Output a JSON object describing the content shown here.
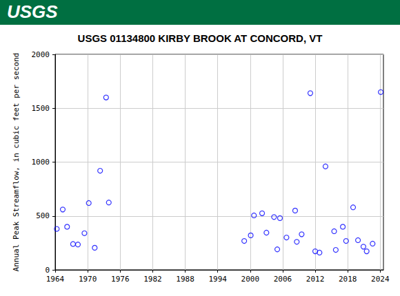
{
  "chart_data": {
    "type": "scatter",
    "title": "USGS 01134800 KIRBY BROOK AT CONCORD, VT",
    "annotations": [
      {
        "text": "USGS"
      }
    ],
    "y_label": "Annual Peak Streamflow, in cubic feet per second",
    "x": [
      1964.3,
      1965.4,
      1966.2,
      1967.3,
      1968.2,
      1969.4,
      1970.2,
      1971.3,
      1972.3,
      1973.4,
      1973.9,
      1998.9,
      2000.1,
      2000.7,
      2002.2,
      2003.0,
      2004.4,
      2005.0,
      2005.5,
      2006.7,
      2008.3,
      2008.6,
      2009.5,
      2011.1,
      2012.0,
      2012.8,
      2013.9,
      2015.5,
      2015.8,
      2017.1,
      2017.7,
      2019.0,
      2019.9,
      2020.9,
      2021.5,
      2022.6,
      2024.1
    ],
    "values": [
      380,
      560,
      400,
      240,
      235,
      340,
      620,
      205,
      920,
      1600,
      625,
      268,
      320,
      505,
      525,
      345,
      490,
      190,
      480,
      300,
      550,
      260,
      330,
      1640,
      172,
      160,
      960,
      358,
      185,
      400,
      268,
      580,
      275,
      215,
      172,
      243,
      1650
    ],
    "color": "#0000ff",
    "marker": "open_circle",
    "xlim": [
      1964,
      2024.6
    ],
    "xticks": [
      1964,
      1970,
      1976,
      1982,
      1988,
      1994,
      2000,
      2006,
      2012,
      2018,
      2024
    ],
    "ylim": [
      0,
      2000
    ],
    "yticks": [
      0,
      500,
      1000,
      1500,
      2000
    ],
    "grid": true
  }
}
